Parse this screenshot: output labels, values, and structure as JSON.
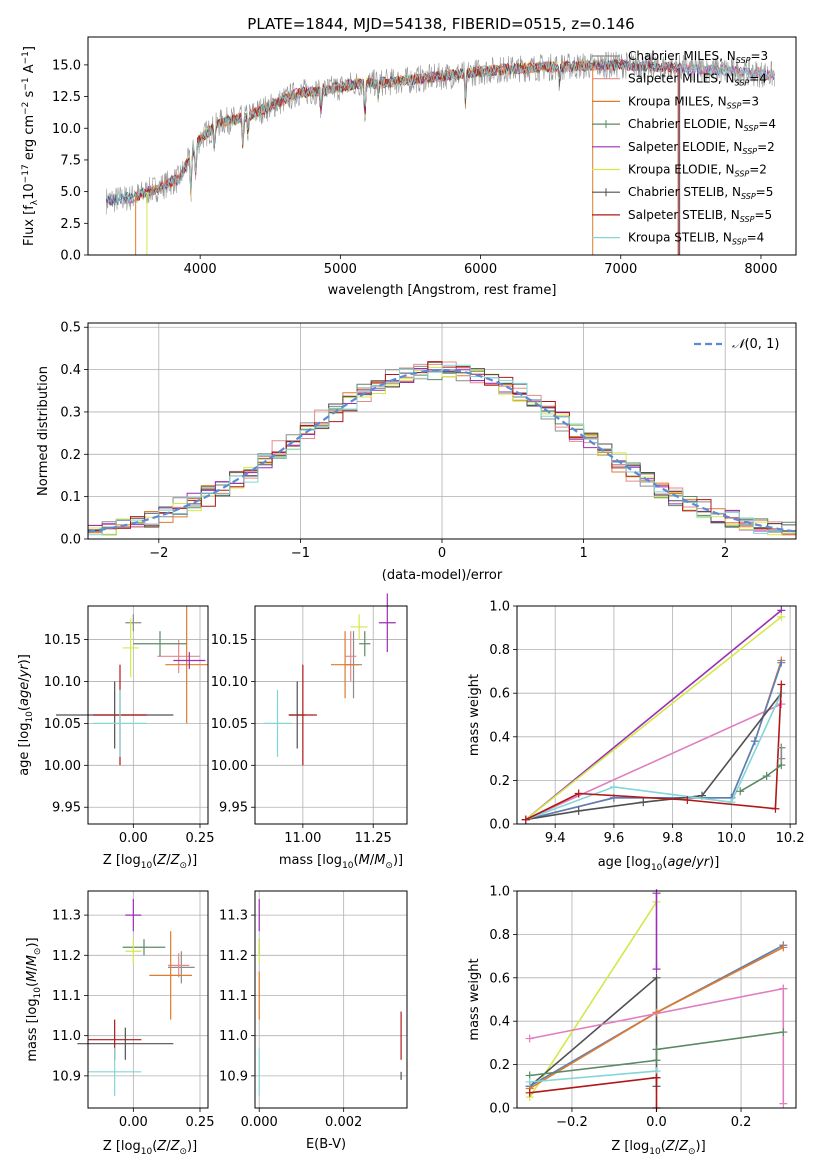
{
  "figure_title": "PLATE=1844, MJD=54138, FIBERID=0515, z=0.146",
  "colors": {
    "Chabrier MILES": "#8c8c8c",
    "Salpeter MILES": "#e58a8a",
    "Kroupa MILES": "#e07b2a",
    "Chabrier ELODIE": "#5a8a64",
    "Salpeter ELODIE": "#9b2fb5",
    "Kroupa ELODIE": "#d4e84a",
    "Chabrier STELIB": "#505050",
    "Salpeter STELIB": "#b01818",
    "Kroupa STELIB": "#82d6d6",
    "pink": "#e07fc0",
    "blue": "#5a7fc0",
    "gauss": "#5b8ad6"
  },
  "chart_data": [
    {
      "id": "spectrum",
      "type": "line",
      "title": "PLATE=1844, MJD=54138, FIBERID=0515, z=0.146",
      "xlabel": "wavelength [Angstrom, rest frame]",
      "ylabel": "Flux [f_λ 10^-17 erg cm^-2 s^-1 A^-1]",
      "xlim": [
        3200,
        8250
      ],
      "ylim": [
        0,
        17.2
      ],
      "xticks": [
        "4000",
        "5000",
        "6000",
        "7000",
        "8000"
      ],
      "yticks": [
        "0.0",
        "2.5",
        "5.0",
        "7.5",
        "10.0",
        "12.5",
        "15.0"
      ],
      "grid": false,
      "legend_position": "top-right",
      "legend": [
        {
          "label": "Chabrier MILES, N_SSP=3",
          "sub": "SSP",
          "n": "3",
          "name": "Chabrier MILES"
        },
        {
          "label": "Salpeter MILES, N_SSP=4",
          "sub": "SSP",
          "n": "4",
          "name": "Salpeter MILES"
        },
        {
          "label": "Kroupa MILES, N_SSP=3",
          "sub": "SSP",
          "n": "3",
          "name": "Kroupa MILES"
        },
        {
          "label": "Chabrier ELODIE, N_SSP=4",
          "sub": "SSP",
          "n": "4",
          "name": "Chabrier ELODIE"
        },
        {
          "label": "Salpeter ELODIE, N_SSP=2",
          "sub": "SSP",
          "n": "2",
          "name": "Salpeter ELODIE"
        },
        {
          "label": "Kroupa ELODIE, N_SSP=2",
          "sub": "SSP",
          "n": "2",
          "name": "Kroupa ELODIE"
        },
        {
          "label": "Chabrier STELIB, N_SSP=5",
          "sub": "SSP",
          "n": "5",
          "name": "Chabrier STELIB"
        },
        {
          "label": "Salpeter STELIB, N_SSP=5",
          "sub": "SSP",
          "n": "5",
          "name": "Salpeter STELIB"
        },
        {
          "label": "Kroupa STELIB, N_SSP=4",
          "sub": "SSP",
          "n": "4",
          "name": "Kroupa STELIB"
        }
      ],
      "continuum_x": [
        3330,
        3500,
        3700,
        3850,
        4000,
        4150,
        4300,
        4500,
        4700,
        4900,
        5100,
        5300,
        5500,
        5800,
        6100,
        6400,
        6700,
        7000,
        7300,
        7500,
        7700,
        8000,
        8100
      ],
      "continuum_y": [
        4.3,
        4.5,
        5.3,
        6.0,
        9.2,
        10.5,
        10.8,
        11.7,
        12.8,
        13.0,
        13.5,
        13.6,
        13.8,
        14.2,
        14.6,
        14.8,
        14.9,
        15.0,
        14.8,
        14.7,
        14.6,
        14.3,
        14.2
      ],
      "absorption_lines": [
        {
          "x": 3934,
          "depth": 3.0
        },
        {
          "x": 3969,
          "depth": 2.5
        },
        {
          "x": 4102,
          "depth": 1.4
        },
        {
          "x": 4305,
          "depth": 2.2
        },
        {
          "x": 4341,
          "depth": 1.4
        },
        {
          "x": 4861,
          "depth": 1.6
        },
        {
          "x": 5175,
          "depth": 2.6
        },
        {
          "x": 5270,
          "depth": 1.0
        },
        {
          "x": 5893,
          "depth": 2.3
        },
        {
          "x": 6563,
          "depth": 1.2
        }
      ],
      "spectrum_cutoffs": [
        {
          "series": "Kroupa MILES",
          "start": 3540
        },
        {
          "series": "Kroupa ELODIE",
          "start": 3620,
          "end": 3900
        },
        {
          "series": "Kroupa MILES",
          "end": 6800
        },
        {
          "series": "Salpeter STELIB",
          "end": 7410
        },
        {
          "series": "Chabrier STELIB",
          "end": 7420
        }
      ]
    },
    {
      "id": "residuals",
      "type": "histogram",
      "xlabel": "(data-model)/error",
      "ylabel": "Normed distribution",
      "xlim": [
        -2.5,
        2.5
      ],
      "ylim": [
        0,
        0.51
      ],
      "xticks": [
        "−2",
        "−1",
        "0",
        "1",
        "2"
      ],
      "yticks": [
        "0.0",
        "0.1",
        "0.2",
        "0.3",
        "0.4",
        "0.5"
      ],
      "grid": true,
      "legend_position": "top-right",
      "legend": [
        {
          "label": "N(0,1)",
          "style": "dashed"
        }
      ],
      "bin_width": 0.1,
      "reference_curve": "gaussian mean 0 sigma 1"
    },
    {
      "id": "age_vs_Z",
      "type": "errorbar",
      "xlabel": "Z [log10(Z/Z⊙)]",
      "ylabel": "age [log10(age/yr)]",
      "xlim": [
        -0.17,
        0.28
      ],
      "ylim": [
        9.93,
        10.19
      ],
      "xticks": [
        "0.00",
        "0.25"
      ],
      "yticks": [
        "9.95",
        "10.00",
        "10.05",
        "10.10",
        "10.15"
      ],
      "points": [
        {
          "series": "Chabrier MILES",
          "x": 0.0,
          "xerr": 0.03,
          "y": 10.17,
          "yerr": 0.01
        },
        {
          "series": "Salpeter MILES",
          "x": 0.17,
          "xerr": 0.08,
          "y": 10.13,
          "yerr": 0.02
        },
        {
          "series": "Kroupa MILES",
          "x": 0.2,
          "xerr": 0.08,
          "y": 10.12,
          "yerr": 0.07
        },
        {
          "series": "Chabrier ELODIE",
          "x": 0.1,
          "xerr": 0.1,
          "y": 10.145,
          "yerr": 0.015
        },
        {
          "series": "Salpeter ELODIE",
          "x": 0.21,
          "xerr": 0.06,
          "y": 10.125,
          "yerr": 0.01
        },
        {
          "series": "Kroupa ELODIE",
          "x": -0.01,
          "xerr": 0.03,
          "y": 10.14,
          "yerr": 0.035
        },
        {
          "series": "Chabrier STELIB",
          "x": -0.07,
          "xerr": 0.22,
          "y": 10.06,
          "yerr": 0.04
        },
        {
          "series": "Salpeter STELIB",
          "x": -0.05,
          "xerr": 0.1,
          "y": 10.06,
          "yerr": 0.06
        },
        {
          "series": "Kroupa STELIB",
          "x": -0.05,
          "xerr": 0.1,
          "y": 10.05,
          "yerr": 0.04
        }
      ]
    },
    {
      "id": "age_vs_mass",
      "type": "errorbar",
      "xlabel": "mass [log10(M/M⊙)]",
      "ylabel": "",
      "xlim": [
        10.83,
        11.37
      ],
      "ylim": [
        9.93,
        10.19
      ],
      "xticks": [
        "11.00",
        "11.25"
      ],
      "yticks": [
        "9.95",
        "10.00",
        "10.05",
        "10.10",
        "10.15"
      ],
      "points": [
        {
          "series": "Chabrier MILES",
          "x": 11.18,
          "xerr": 0.03,
          "y": 10.12,
          "yerr": 0.04
        },
        {
          "series": "Salpeter MILES",
          "x": 11.17,
          "xerr": 0.02,
          "y": 10.13,
          "yerr": 0.03
        },
        {
          "series": "Kroupa MILES",
          "x": 11.15,
          "xerr": 0.05,
          "y": 10.12,
          "yerr": 0.04
        },
        {
          "series": "Chabrier ELODIE",
          "x": 11.22,
          "xerr": 0.02,
          "y": 10.145,
          "yerr": 0.015
        },
        {
          "series": "Salpeter ELODIE",
          "x": 11.3,
          "xerr": 0.03,
          "y": 10.17,
          "yerr": 0.035
        },
        {
          "series": "Kroupa ELODIE",
          "x": 11.2,
          "xerr": 0.03,
          "y": 10.165,
          "yerr": 0.015
        },
        {
          "series": "Chabrier STELIB",
          "x": 10.98,
          "xerr": 0.03,
          "y": 10.06,
          "yerr": 0.04
        },
        {
          "series": "Salpeter STELIB",
          "x": 11.0,
          "xerr": 0.05,
          "y": 10.06,
          "yerr": 0.06
        },
        {
          "series": "Kroupa STELIB",
          "x": 10.91,
          "xerr": 0.05,
          "y": 10.05,
          "yerr": 0.04
        }
      ]
    },
    {
      "id": "weight_vs_age",
      "type": "line",
      "xlabel": "age [log10(age/yr)]",
      "ylabel": "mass weight",
      "xlim": [
        9.27,
        10.22
      ],
      "ylim": [
        0,
        1.0
      ],
      "xticks": [
        "9.4",
        "9.6",
        "9.8",
        "10.0",
        "10.2"
      ],
      "yticks": [
        "0.0",
        "0.2",
        "0.4",
        "0.6",
        "0.8",
        "1.0"
      ],
      "grid": true,
      "series": [
        {
          "name": "Salpeter ELODIE",
          "x": [
            9.3,
            10.17
          ],
          "y": [
            0.02,
            0.98
          ]
        },
        {
          "name": "Kroupa ELODIE",
          "x": [
            9.3,
            10.17
          ],
          "y": [
            0.02,
            0.95
          ]
        },
        {
          "name": "pink",
          "x": [
            9.3,
            10.17
          ],
          "y": [
            0.02,
            0.55
          ]
        },
        {
          "name": "Kroupa MILES",
          "x": [
            9.3,
            9.6,
            10.0,
            10.08,
            10.17
          ],
          "y": [
            0.02,
            0.12,
            0.12,
            0.38,
            0.75
          ]
        },
        {
          "name": "blue",
          "x": [
            9.3,
            9.6,
            10.0,
            10.08,
            10.17
          ],
          "y": [
            0.02,
            0.12,
            0.12,
            0.38,
            0.74
          ]
        },
        {
          "name": "Chabrier STELIB",
          "x": [
            9.3,
            9.48,
            9.7,
            9.9,
            10.17
          ],
          "y": [
            0.02,
            0.06,
            0.1,
            0.13,
            0.6
          ]
        },
        {
          "name": "Kroupa STELIB",
          "x": [
            9.3,
            9.6,
            10.0,
            10.17
          ],
          "y": [
            0.02,
            0.17,
            0.1,
            0.6
          ]
        },
        {
          "name": "Salpeter STELIB",
          "x": [
            9.3,
            9.48,
            9.85,
            10.15,
            10.17
          ],
          "y": [
            0.02,
            0.14,
            0.11,
            0.07,
            0.64
          ]
        },
        {
          "name": "Chabrier ELODIE",
          "x": [
            10.03,
            10.12,
            10.17,
            10.17
          ],
          "y": [
            0.15,
            0.22,
            0.27,
            0.35
          ]
        },
        {
          "name": "Chabrier MILES",
          "x": [
            10.17,
            10.17
          ],
          "y": [
            0.3,
            0.35
          ]
        }
      ]
    },
    {
      "id": "mass_vs_Z",
      "type": "errorbar",
      "xlabel": "Z [log10(Z/Z⊙)]",
      "ylabel": "mass [log10(M/M⊙)]",
      "xlim": [
        -0.17,
        0.28
      ],
      "ylim": [
        10.82,
        11.36
      ],
      "xticks": [
        "0.00",
        "0.25"
      ],
      "yticks": [
        "10.9",
        "11.0",
        "11.1",
        "11.2",
        "11.3"
      ],
      "points": [
        {
          "series": "Chabrier MILES",
          "x": 0.18,
          "xerr": 0.05,
          "y": 11.17,
          "yerr": 0.04
        },
        {
          "series": "Salpeter MILES",
          "x": 0.17,
          "xerr": 0.04,
          "y": 11.175,
          "yerr": 0.03
        },
        {
          "series": "Kroupa MILES",
          "x": 0.14,
          "xerr": 0.08,
          "y": 11.15,
          "yerr": 0.11
        },
        {
          "series": "Chabrier ELODIE",
          "x": 0.04,
          "xerr": 0.08,
          "y": 11.22,
          "yerr": 0.02
        },
        {
          "series": "Salpeter ELODIE",
          "x": 0.0,
          "xerr": 0.03,
          "y": 11.3,
          "yerr": 0.04
        },
        {
          "series": "Kroupa ELODIE",
          "x": 0.0,
          "xerr": 0.03,
          "y": 11.21,
          "yerr": 0.03
        },
        {
          "series": "Chabrier STELIB",
          "x": -0.03,
          "xerr": 0.18,
          "y": 10.98,
          "yerr": 0.04
        },
        {
          "series": "Salpeter STELIB",
          "x": -0.07,
          "xerr": 0.1,
          "y": 10.99,
          "yerr": 0.05
        },
        {
          "series": "Kroupa STELIB",
          "x": -0.07,
          "xerr": 0.1,
          "y": 10.91,
          "yerr": 0.06
        }
      ]
    },
    {
      "id": "mass_vs_ebv",
      "type": "errorbar",
      "xlabel": "E(B-V)",
      "ylabel": "",
      "xlim": [
        -0.0001,
        0.0035
      ],
      "ylim": [
        10.82,
        11.36
      ],
      "xticks": [
        "0.000",
        "0.002"
      ],
      "yticks": [
        "10.9",
        "11.0",
        "11.1",
        "11.2",
        "11.3"
      ],
      "points": [
        {
          "series": "Salpeter ELODIE",
          "x": 0.0,
          "xerr": 0.0,
          "y": 11.3,
          "yerr": 0.04
        },
        {
          "series": "Chabrier ELODIE",
          "x": 0.0,
          "xerr": 0.0,
          "y": 11.22,
          "yerr": 0.02
        },
        {
          "series": "Kroupa ELODIE",
          "x": 0.0,
          "xerr": 0.0,
          "y": 11.21,
          "yerr": 0.03
        },
        {
          "series": "Kroupa MILES",
          "x": 0.0,
          "xerr": 0.0,
          "y": 11.1,
          "yerr": 0.06
        },
        {
          "series": "Kroupa STELIB",
          "x": 0.0,
          "xerr": 0.0,
          "y": 10.91,
          "yerr": 0.06
        },
        {
          "series": "Salpeter STELIB",
          "x": 0.00336,
          "xerr": 0.0,
          "y": 11.0,
          "yerr": 0.06
        },
        {
          "series": "Chabrier STELIB",
          "x": 0.00336,
          "xerr": 0.0,
          "y": 10.9,
          "yerr": 0.01
        }
      ]
    },
    {
      "id": "weight_vs_Z",
      "type": "line",
      "xlabel": "Z [log10(Z/Z⊙)]",
      "ylabel": "mass weight",
      "xlim": [
        -0.33,
        0.33
      ],
      "ylim": [
        0,
        1.0
      ],
      "xticks": [
        "−0.2",
        "0.0",
        "0.2"
      ],
      "yticks": [
        "0.0",
        "0.2",
        "0.4",
        "0.6",
        "0.8",
        "1.0"
      ],
      "grid": true,
      "series": [
        {
          "name": "Kroupa ELODIE",
          "x": [
            -0.3,
            0.0
          ],
          "y": [
            0.05,
            0.95
          ]
        },
        {
          "name": "Salpeter ELODIE",
          "x": [
            0.0,
            0.0
          ],
          "y": [
            0.64,
            0.99
          ]
        },
        {
          "name": "Chabrier STELIB",
          "x": [
            -0.3,
            0.0,
            0.0
          ],
          "y": [
            0.1,
            0.6,
            0.1
          ]
        },
        {
          "name": "blue",
          "x": [
            -0.3,
            0.0,
            0.3
          ],
          "y": [
            0.1,
            0.44,
            0.75
          ]
        },
        {
          "name": "Kroupa MILES",
          "x": [
            -0.3,
            0.0,
            0.3
          ],
          "y": [
            0.09,
            0.44,
            0.74
          ]
        },
        {
          "name": "pink",
          "x": [
            -0.3,
            0.3
          ],
          "y": [
            0.32,
            0.55
          ]
        },
        {
          "name": "pink",
          "x": [
            0.3,
            0.3
          ],
          "y": [
            0.02,
            0.55
          ]
        },
        {
          "name": "Chabrier ELODIE",
          "x": [
            -0.3,
            0.0,
            0.0,
            0.3
          ],
          "y": [
            0.15,
            0.22,
            0.27,
            0.35
          ]
        },
        {
          "name": "Kroupa STELIB",
          "x": [
            -0.3,
            0.0
          ],
          "y": [
            0.12,
            0.17
          ]
        },
        {
          "name": "Salpeter STELIB",
          "x": [
            -0.3,
            0.0
          ],
          "y": [
            0.07,
            0.14
          ]
        },
        {
          "name": "Salpeter STELIB",
          "x": [
            0.0,
            0.0
          ],
          "y": [
            0.0,
            0.14
          ]
        }
      ]
    }
  ]
}
